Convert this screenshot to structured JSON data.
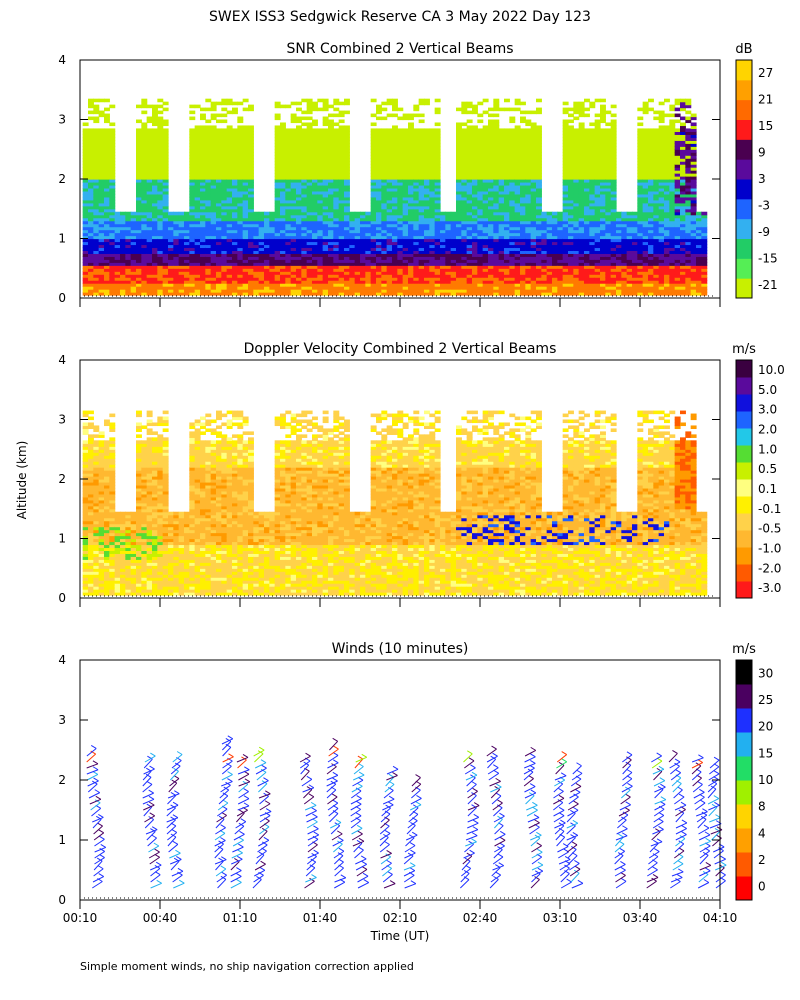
{
  "figure": {
    "title": "SWEX ISS3 Sedgwick Reserve CA    3 May 2022 Day 123",
    "ylabel": "Altitude (km)",
    "xlabel": "Time (UT)",
    "footnote": "Simple moment winds, no ship navigation correction applied",
    "time_ticks": [
      "00:10",
      "00:40",
      "01:10",
      "01:40",
      "02:10",
      "02:40",
      "03:10",
      "03:40",
      "04:10"
    ],
    "altitude_ticks": [
      "0",
      "1",
      "2",
      "3",
      "4"
    ]
  },
  "chart_data": [
    {
      "type": "heatmap",
      "title": "SNR Combined 2 Vertical Beams",
      "xlabel": "Time (UT)",
      "ylabel": "Altitude (km)",
      "xlim": [
        "00:10",
        "04:10"
      ],
      "ylim": [
        0,
        4
      ],
      "colorbar_unit": "dB",
      "colorbar_ticks": [
        "27",
        "21",
        "15",
        "9",
        "3",
        "-3",
        "-9",
        "-15",
        "-21"
      ],
      "colorbar_colors": [
        "#c8f000",
        "#55ee55",
        "#22cc66",
        "#33b0f0",
        "#1e64ff",
        "#0000cc",
        "#5a0a9c",
        "#4a0050",
        "#ff1a1a",
        "#ff6a00",
        "#ffa000",
        "#ffd400"
      ],
      "layers": [
        {
          "altitude_range_km": [
            0.0,
            0.5
          ],
          "snr_db": 21
        },
        {
          "altitude_range_km": [
            0.5,
            0.9
          ],
          "snr_db": 6
        },
        {
          "altitude_range_km": [
            0.9,
            1.3
          ],
          "snr_db": -6
        },
        {
          "altitude_range_km": [
            1.3,
            2.0
          ],
          "snr_db": -15
        },
        {
          "altitude_range_km": [
            2.0,
            3.3
          ],
          "snr_db": -21
        }
      ]
    },
    {
      "type": "heatmap",
      "title": "Doppler Velocity Combined 2 Vertical Beams",
      "xlabel": "Time (UT)",
      "ylabel": "Altitude (km)",
      "xlim": [
        "00:10",
        "04:10"
      ],
      "ylim": [
        0,
        4
      ],
      "colorbar_unit": "m/s",
      "colorbar_ticks": [
        "10.0",
        "5.0",
        "3.0",
        "2.0",
        "1.0",
        "0.5",
        "0.1",
        "-0.1",
        "-0.5",
        "-1.0",
        "-2.0",
        "-3.0"
      ],
      "colorbar_colors": [
        "#ff1a1a",
        "#ff5a00",
        "#ff9a00",
        "#ffb830",
        "#ffd24a",
        "#fff000",
        "#ffff80",
        "#c8f000",
        "#55dd33",
        "#22c8e8",
        "#1e64ff",
        "#1010dd",
        "#5a0a9c",
        "#3a0040"
      ],
      "layers": [
        {
          "altitude_range_km": [
            0.0,
            0.9
          ],
          "velocity_ms": -0.1
        },
        {
          "altitude_range_km": [
            0.9,
            2.2
          ],
          "velocity_ms": -0.5
        },
        {
          "altitude_range_km": [
            2.2,
            3.1
          ],
          "velocity_ms": -0.1
        }
      ]
    },
    {
      "type": "scatter",
      "title": "Winds (10 minutes)",
      "xlabel": "Time (UT)",
      "ylabel": "Altitude (km)",
      "xlim": [
        "00:10",
        "04:10"
      ],
      "ylim": [
        0,
        4
      ],
      "colorbar_unit": "m/s",
      "colorbar_ticks": [
        "30",
        "25",
        "20",
        "15",
        "10",
        "8",
        "4",
        "2",
        "0"
      ],
      "colorbar_colors": [
        "#ff0000",
        "#ff5a00",
        "#ffa000",
        "#ffd400",
        "#a0f000",
        "#22dd66",
        "#22b0f0",
        "#1e30ff",
        "#4a0060",
        "#000000"
      ],
      "profile_times": [
        "00:14",
        "00:35",
        "00:44",
        "01:02",
        "01:08",
        "01:16",
        "01:34",
        "01:44",
        "01:53",
        "02:04",
        "02:13",
        "02:34",
        "02:44",
        "02:58",
        "03:09",
        "03:14",
        "03:32",
        "03:44",
        "03:52",
        "04:01",
        "04:07"
      ],
      "profile_top_km": [
        2.5,
        2.4,
        2.4,
        2.7,
        2.4,
        2.5,
        2.4,
        2.6,
        2.4,
        2.2,
        2.0,
        2.4,
        2.5,
        2.5,
        2.4,
        2.2,
        2.4,
        2.4,
        2.4,
        2.4,
        2.3
      ]
    }
  ]
}
